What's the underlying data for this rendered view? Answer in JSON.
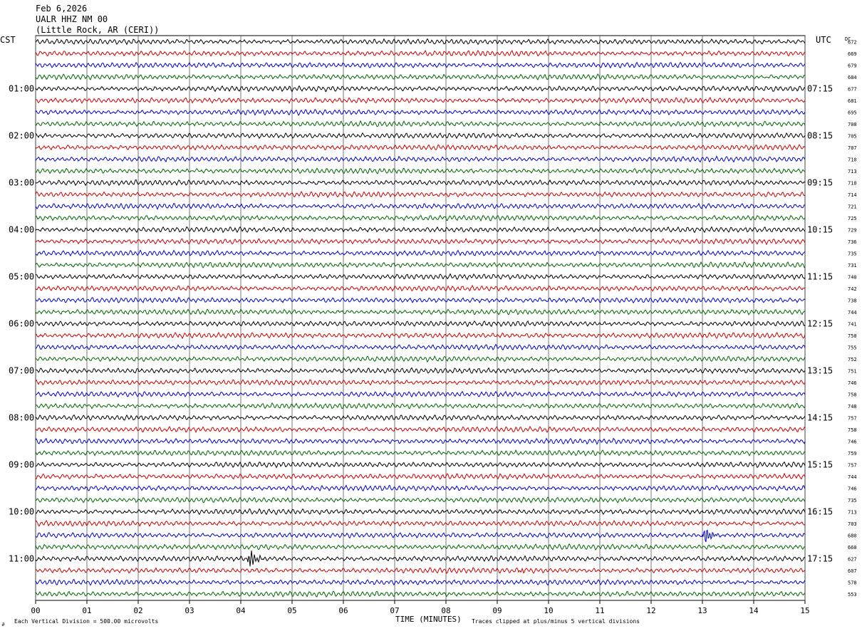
{
  "header": {
    "date": "Feb 6,2026",
    "station": "UALR HHZ NM 00",
    "location": "(Little Rock, AR (CERI))"
  },
  "labels": {
    "left_tz": "CST",
    "right_tz": "UTC",
    "dc": "DC"
  },
  "footer": {
    "scale": "Each Vertical Division =  500.00 microvolts",
    "clip": "Traces clipped at plus/minus 5 vertical divisions",
    "corner_mark": "∂"
  },
  "chart_data": {
    "type": "line",
    "title": "",
    "xlabel": "TIME (MINUTES)",
    "ylabel": "",
    "x_ticks": [
      "00",
      "01",
      "02",
      "03",
      "04",
      "05",
      "06",
      "07",
      "08",
      "09",
      "10",
      "11",
      "12",
      "13",
      "14",
      "15"
    ],
    "xlim": [
      0,
      15
    ],
    "trace_colors": [
      "#000000",
      "#cc0000",
      "#0000cc",
      "#006600"
    ],
    "num_traces": 48,
    "left_time_labels": [
      "01:00",
      "02:00",
      "03:00",
      "04:00",
      "05:00",
      "06:00",
      "07:00",
      "08:00",
      "09:00",
      "10:00",
      "11:00"
    ],
    "right_time_labels": [
      "07:15",
      "08:15",
      "09:15",
      "10:15",
      "11:15",
      "12:15",
      "13:15",
      "14:15",
      "15:15",
      "16:15",
      "17:15"
    ],
    "dc_offsets": [
      672,
      669,
      679,
      684,
      677,
      681,
      695,
      700,
      705,
      707,
      710,
      713,
      710,
      714,
      721,
      725,
      729,
      736,
      735,
      731,
      740,
      742,
      738,
      744,
      741,
      750,
      755,
      752,
      751,
      746,
      758,
      748,
      757,
      758,
      746,
      759,
      757,
      744,
      746,
      735,
      713,
      703,
      680,
      660,
      627,
      607,
      578,
      553
    ],
    "events": [
      {
        "trace": 44,
        "minute": 4.17,
        "amplitude": "large"
      },
      {
        "trace": 42,
        "minute": 13.05,
        "amplitude": "medium"
      },
      {
        "trace": 45,
        "minute": 9.45,
        "amplitude": "small"
      }
    ]
  }
}
